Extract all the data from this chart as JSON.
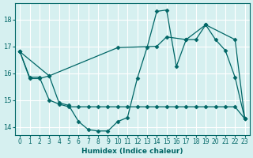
{
  "xlabel": "Humidex (Indice chaleur)",
  "ylabel": "",
  "bg_color": "#d6f0f0",
  "line_color": "#006666",
  "grid_color": "#ffffff",
  "xlim": [
    -0.5,
    23.5
  ],
  "ylim": [
    13.7,
    18.6
  ],
  "yticks": [
    14,
    15,
    16,
    17,
    18
  ],
  "xticks": [
    0,
    1,
    2,
    3,
    4,
    5,
    6,
    7,
    8,
    9,
    10,
    11,
    12,
    13,
    14,
    15,
    16,
    17,
    18,
    19,
    20,
    21,
    22,
    23
  ],
  "series": [
    {
      "x": [
        0,
        1,
        2,
        3,
        4,
        5,
        6,
        7,
        8,
        9,
        10,
        11,
        12,
        13,
        14,
        15,
        16,
        17,
        18,
        19,
        20,
        21,
        22,
        23
      ],
      "y": [
        16.8,
        15.8,
        15.8,
        15.9,
        14.9,
        14.8,
        14.2,
        13.9,
        13.85,
        13.85,
        14.2,
        14.35,
        15.8,
        16.95,
        18.3,
        18.35,
        16.25,
        17.25,
        17.25,
        17.8,
        17.25,
        16.85,
        15.85,
        14.3
      ]
    },
    {
      "x": [
        0,
        1,
        2,
        3,
        4,
        5,
        6,
        7,
        8,
        9,
        10,
        11,
        12,
        13,
        14,
        15,
        16,
        17,
        18,
        19,
        20,
        21,
        22,
        23
      ],
      "y": [
        16.8,
        15.85,
        15.85,
        15.0,
        14.85,
        14.75,
        14.75,
        14.75,
        14.75,
        14.75,
        14.75,
        14.75,
        14.75,
        14.75,
        14.75,
        14.75,
        14.75,
        14.75,
        14.75,
        14.75,
        14.75,
        14.75,
        14.75,
        14.3
      ]
    },
    {
      "x": [
        0,
        3,
        10,
        14,
        15,
        17,
        19,
        22,
        23
      ],
      "y": [
        16.8,
        15.9,
        16.95,
        17.0,
        17.35,
        17.25,
        17.8,
        17.25,
        14.3
      ]
    }
  ]
}
